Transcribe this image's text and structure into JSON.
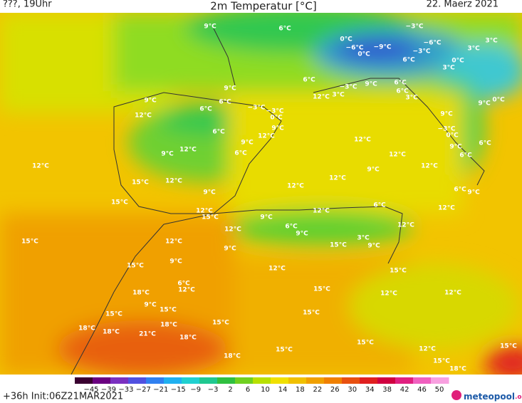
{
  "header": {
    "left": "???, 19Uhr",
    "title": "2m Temperatur [°C]",
    "date": "22. Maerz 2021"
  },
  "map_labels": [
    "9°C",
    "6°C",
    "−3°C",
    "0°C",
    "−6°C",
    "−9°C",
    "0°C",
    "−6°C",
    "−3°C",
    "3°C",
    "3°C",
    "0°C",
    "3°C",
    "6°C",
    "6°C",
    "−3°C",
    "9°C",
    "6°C",
    "6°C",
    "3°C",
    "12°C",
    "3°C",
    "9°C",
    "9°C",
    "6°C",
    "6°C",
    "−3°C",
    "−3°C",
    "0°C",
    "9°C",
    "12°C",
    "6°C",
    "12°C",
    "9°C",
    "9°C",
    "12°C",
    "6°C",
    "12°C",
    "12°C",
    "9°C",
    "15°C",
    "15°C",
    "12°C",
    "15°C",
    "9°C",
    "12°C",
    "12°C",
    "12°C",
    "12°C",
    "9°C",
    "12°C",
    "9°C",
    "−3°C",
    "0°C",
    "9°C",
    "6°C",
    "6°C",
    "0°C",
    "9°C",
    "6°C",
    "9°C",
    "12°C",
    "12°C",
    "6°C",
    "12°C",
    "6°C",
    "9°C",
    "12°C",
    "15°C",
    "12°C",
    "9°C",
    "3°C",
    "9°C",
    "15°C",
    "15°C",
    "9°C",
    "12°C",
    "15°C",
    "6°C",
    "12°C",
    "18°C",
    "15°C",
    "12°C",
    "12°C",
    "9°C",
    "15°C",
    "15°C",
    "15°C",
    "18°C",
    "18°C",
    "18°C",
    "21°C",
    "15°C",
    "18°C",
    "15°C",
    "15°C",
    "12°C",
    "15°C",
    "18°C",
    "15°C",
    "18°C"
  ],
  "colorbar": {
    "labels": [
      "−45",
      "−39",
      "−33",
      "−27",
      "−21",
      "−15",
      "−9",
      "−3",
      "2",
      "6",
      "10",
      "14",
      "18",
      "22",
      "26",
      "30",
      "34",
      "38",
      "42",
      "46",
      "50"
    ]
  },
  "footer": {
    "left": "+36h  Init:06Z21MAR2021",
    "brand": "meteopool",
    "brand_suffix": ".org"
  }
}
